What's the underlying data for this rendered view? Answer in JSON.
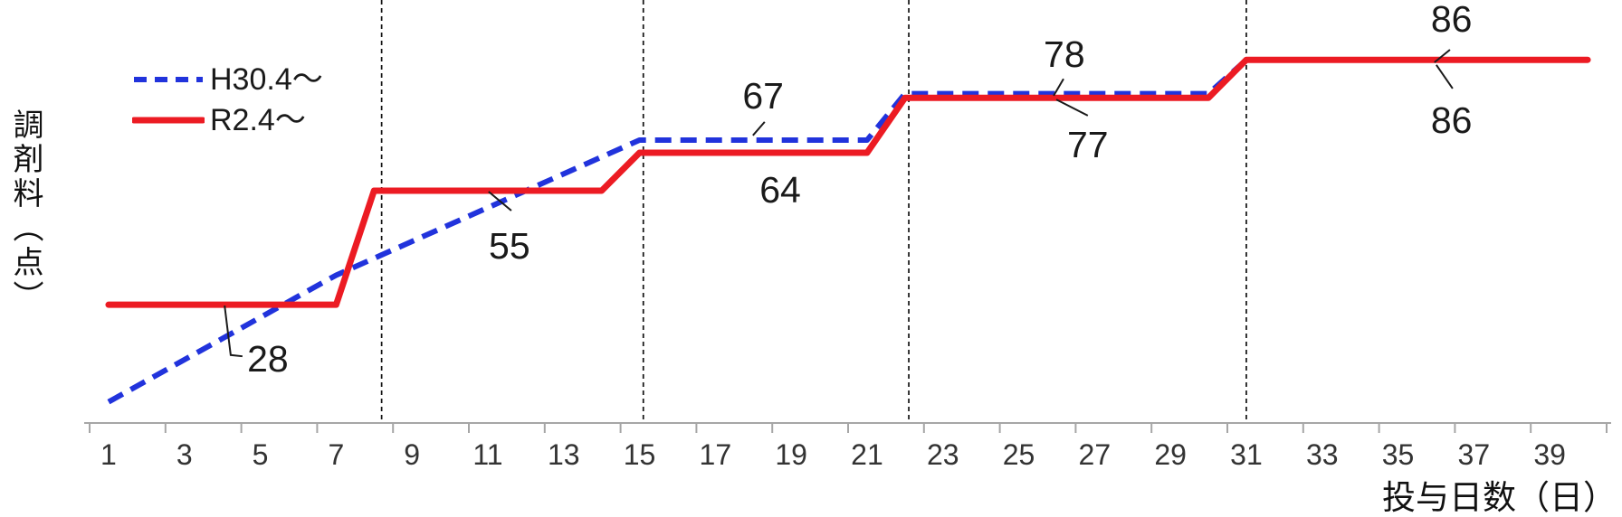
{
  "chart_data": {
    "type": "line",
    "title": "",
    "xlabel": "投与日数（日）",
    "ylabel": "調剤料（点）",
    "grid": "off",
    "xlim": [
      0.36,
      40.62
    ],
    "ylim": [
      0,
      100
    ],
    "x_tick_days": [
      1,
      3,
      5,
      7,
      9,
      11,
      13,
      15,
      17,
      19,
      21,
      23,
      25,
      27,
      29,
      31,
      33,
      35,
      37,
      39
    ],
    "x_tick_labels": [
      "1",
      "3",
      "5",
      "7",
      "9",
      "11",
      "13",
      "15",
      "17",
      "19",
      "21",
      "23",
      "25",
      "27",
      "29",
      "31",
      "33",
      "35",
      "37",
      "39"
    ],
    "boundary_guides_days": [
      8.2,
      15.1,
      22.1,
      31.0
    ],
    "axis_color": "#a6a6a6",
    "guide_color": "#111111",
    "tick_label_color": "#333333",
    "annotation_color": "#1a1a1a",
    "legend": {
      "position": "top-left",
      "entries": [
        {
          "label": "H30.4～",
          "color": "#2133dc",
          "dashed": true
        },
        {
          "label": "R2.4～",
          "color": "#ec1b23",
          "dashed": false
        }
      ]
    },
    "series": [
      {
        "name": "H30.4～",
        "color": "#2133dc",
        "dashed": true,
        "points": [
          [
            1,
            5
          ],
          [
            7,
            35
          ],
          [
            15,
            67
          ],
          [
            21,
            67
          ],
          [
            22,
            78
          ],
          [
            30,
            78
          ],
          [
            31,
            86
          ],
          [
            40,
            86
          ]
        ]
      },
      {
        "name": "R2.4～",
        "color": "#ec1b23",
        "dashed": false,
        "points": [
          [
            1,
            28
          ],
          [
            7,
            28
          ],
          [
            8,
            55
          ],
          [
            14,
            55
          ],
          [
            15,
            64
          ],
          [
            21,
            64
          ],
          [
            22,
            77
          ],
          [
            30,
            77
          ],
          [
            31,
            86
          ],
          [
            40,
            86
          ]
        ]
      }
    ],
    "annotations": [
      {
        "text": "28",
        "day": 5.2,
        "value": 15.2,
        "leader": [
          [
            4.06,
            27.8
          ],
          [
            4.22,
            16.1
          ],
          [
            4.53,
            15.8
          ]
        ]
      },
      {
        "text": "55",
        "day": 11.57,
        "value": 41.9,
        "leader": [
          [
            11.02,
            54.8
          ],
          [
            11.62,
            50.3
          ]
        ]
      },
      {
        "text": "67",
        "day": 18.26,
        "value": 77.5,
        "leader": [
          [
            18.3,
            71.3
          ],
          [
            17.99,
            68.1
          ]
        ]
      },
      {
        "text": "64",
        "day": 18.71,
        "value": 55.2,
        "leader": []
      },
      {
        "text": "78",
        "day": 26.2,
        "value": 87.3,
        "leader": [
          [
            26.18,
            81.5
          ],
          [
            25.92,
            77.5
          ]
        ]
      },
      {
        "text": "77",
        "day": 26.82,
        "value": 65.9,
        "leader": [
          [
            25.99,
            76.6
          ],
          [
            26.82,
            72.8
          ]
        ]
      },
      {
        "text": "86",
        "day": 36.41,
        "value": 95.7,
        "leader": [
          [
            36.37,
            88.4
          ],
          [
            35.96,
            85.4
          ]
        ]
      },
      {
        "text": "86",
        "day": 36.41,
        "value": 71.7,
        "leader": [
          [
            36.01,
            84.8
          ],
          [
            36.44,
            79.2
          ]
        ]
      }
    ]
  }
}
